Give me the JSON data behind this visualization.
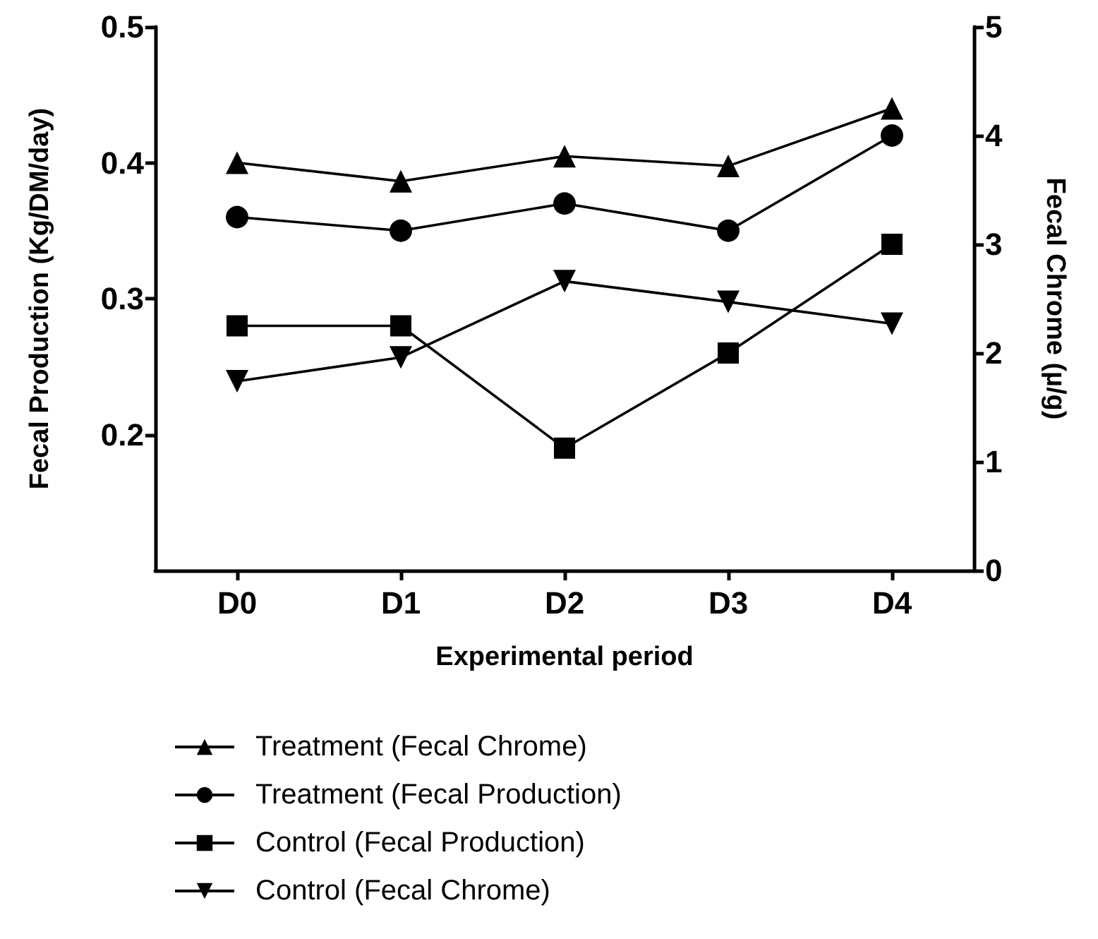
{
  "chart_data": {
    "type": "line",
    "xlabel": "Experimental period",
    "ylabel": "Fecal Production (Kg/DM/day)",
    "y2label": "Fecal Chrome (µ/g)",
    "categories": [
      "D0",
      "D1",
      "D2",
      "D3",
      "D4"
    ],
    "series": [
      {
        "name": "Treatment (Fecal Chrome)",
        "color": "#000000",
        "marker": "triangle",
        "axis": "y2",
        "values": [
          3.75,
          3.58,
          3.81,
          3.72,
          4.25
        ]
      },
      {
        "name": "Treatment (Fecal Production)",
        "color": "#000000",
        "marker": "circle",
        "values": [
          0.36,
          0.35,
          0.37,
          0.35,
          0.42
        ]
      },
      {
        "name": "Control (Fecal Production)",
        "color": "#000000",
        "marker": "square",
        "values": [
          0.28,
          0.28,
          0.19,
          0.26,
          0.34
        ]
      },
      {
        "name": "Control (Fecal Chrome)",
        "color": "#000000",
        "marker": "triangle_down",
        "axis": "y2",
        "values": [
          1.74,
          1.96,
          2.66,
          2.47,
          2.27
        ]
      }
    ],
    "ylim": [
      0.1,
      0.5
    ],
    "yticks": [
      0.2,
      0.3,
      0.4,
      0.5
    ],
    "y2lim": [
      0,
      5
    ],
    "y2ticks": [
      0,
      1,
      2,
      3,
      4,
      5
    ],
    "grid": false,
    "legend": "bottom",
    "line_style": "solid"
  }
}
